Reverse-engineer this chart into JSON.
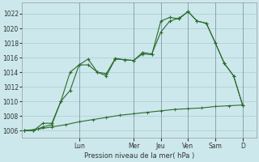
{
  "title": "",
  "xlabel": "Pression niveau de la mer( hPa )",
  "ylabel": "",
  "bg_color": "#cce8ec",
  "grid_color": "#aacccc",
  "line_color": "#2d6b2d",
  "ylim_min": 1005.0,
  "ylim_max": 1023.5,
  "yticks": [
    1006,
    1008,
    1010,
    1012,
    1014,
    1016,
    1018,
    1020,
    1022
  ],
  "day_labels": [
    "Lun",
    "Mer",
    "Jeu",
    "Ven",
    "Sam",
    "D"
  ],
  "day_positions": [
    2,
    4,
    5,
    6,
    7,
    8
  ],
  "xlim_min": -0.1,
  "xlim_max": 8.5,
  "series1_x": [
    0,
    0.33,
    0.67,
    1.0,
    1.33,
    1.67,
    2.0,
    2.33,
    2.67,
    3.0,
    3.33,
    3.67,
    4.0,
    4.33,
    4.67,
    5.0,
    5.33,
    5.67,
    6.0,
    6.33,
    6.67,
    7.0,
    7.33,
    7.67,
    8.0
  ],
  "series1_y": [
    1006,
    1006,
    1007,
    1007,
    1010,
    1011.5,
    1015,
    1015,
    1014,
    1013.8,
    1015.9,
    1015.7,
    1015.6,
    1016.7,
    1016.5,
    1019.5,
    1021,
    1021.4,
    1022.3,
    1021,
    1020.7,
    1018,
    1015.2,
    1013.5,
    1009.5
  ],
  "series2_x": [
    0,
    0.33,
    0.67,
    1.0,
    1.33,
    1.67,
    2.0,
    2.33,
    2.67,
    3.0,
    3.33,
    3.67,
    4.0,
    4.33,
    4.67,
    5.0,
    5.33,
    5.67,
    6.0,
    6.33,
    6.67,
    7.0,
    7.33,
    7.67,
    8.0
  ],
  "series2_y": [
    1006,
    1006,
    1006.5,
    1006.8,
    1010,
    1014,
    1015,
    1015.8,
    1014,
    1013.5,
    1015.8,
    1015.7,
    1015.6,
    1016.5,
    1016.4,
    1021,
    1021.5,
    1021.3,
    1022.3,
    1021,
    1020.7,
    1018,
    1015.2,
    1013.5,
    1009.5
  ],
  "series3_x": [
    0,
    0.5,
    1.0,
    1.5,
    2.0,
    2.5,
    3.0,
    3.5,
    4.0,
    4.5,
    5.0,
    5.5,
    6.0,
    6.5,
    7.0,
    7.5,
    8.0
  ],
  "series3_y": [
    1006,
    1006.2,
    1006.5,
    1006.8,
    1007.2,
    1007.5,
    1007.8,
    1008.1,
    1008.3,
    1008.5,
    1008.7,
    1008.9,
    1009.0,
    1009.1,
    1009.3,
    1009.4,
    1009.5
  ]
}
